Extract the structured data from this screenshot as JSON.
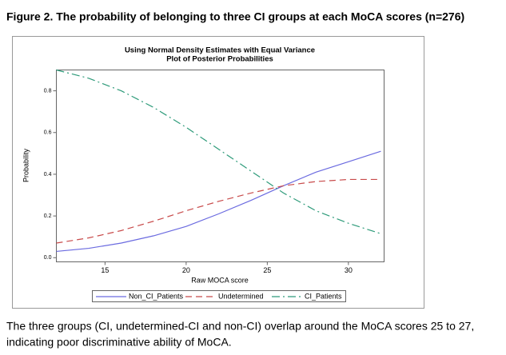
{
  "figure_title": "Figure 2. The probability of belonging to three CI groups at each MoCA scores (n=276)",
  "caption": [
    "The three groups (CI, undetermined-CI and non-CI) overlap around the MoCA scores 25 to 27,",
    "indicating poor discriminative ability of MoCA."
  ],
  "chart_data": {
    "type": "line",
    "title": "Using Normal Density Estimates with Equal Variance",
    "subtitle": "Plot of Posterior Probabilities",
    "x_label": "Raw MOCA score",
    "y_label": "Probability",
    "x": [
      12,
      14,
      16,
      18,
      20,
      22,
      24,
      26,
      28,
      30,
      32
    ],
    "series": [
      {
        "name": "Non_CI_Patients",
        "color": "#6b6be0",
        "dash": "none",
        "values": [
          0.03,
          0.045,
          0.07,
          0.105,
          0.15,
          0.21,
          0.275,
          0.345,
          0.41,
          0.46,
          0.51
        ]
      },
      {
        "name": "Undetermined",
        "color": "#c84a4a",
        "dash": "8,5",
        "values": [
          0.07,
          0.095,
          0.13,
          0.175,
          0.225,
          0.27,
          0.31,
          0.345,
          0.365,
          0.375,
          0.375
        ]
      },
      {
        "name": "CI_Patients",
        "color": "#2e9b7a",
        "dash": "10,4,2,4",
        "values": [
          0.9,
          0.86,
          0.8,
          0.72,
          0.625,
          0.52,
          0.415,
          0.31,
          0.225,
          0.165,
          0.115
        ]
      }
    ],
    "xlim": [
      12,
      32.2
    ],
    "ylim": [
      -0.02,
      0.9
    ],
    "xticks": [
      15,
      20,
      25,
      30
    ],
    "yticks": [
      {
        "value": 0,
        "label": "0.0"
      },
      0.2,
      0.4,
      0.6,
      0.8
    ],
    "legend": "bottom"
  }
}
